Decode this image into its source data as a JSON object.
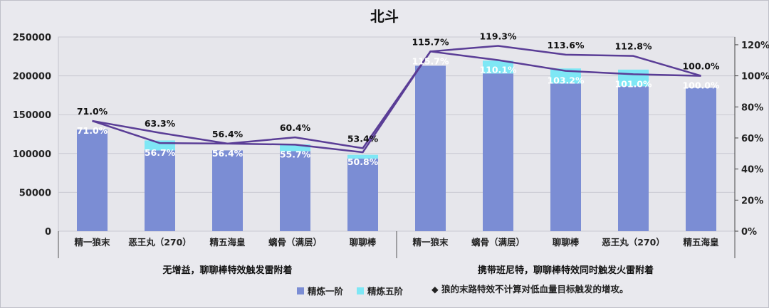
{
  "chart_data": {
    "type": "bar",
    "title": "北斗",
    "categories": [
      "精一狼末",
      "恶王丸（270）",
      "精五海皇",
      "螭骨（满层）",
      "聊聊棒",
      "精一狼末",
      "螭骨（满层）",
      "聊聊棒",
      "恶王丸（270）",
      "精五海皇"
    ],
    "groups": [
      {
        "label": "无增益，聊聊棒特效触发雷附着",
        "start": 0,
        "end": 4
      },
      {
        "label": "携带班尼特，聊聊棒特效同时触发火雷附着",
        "start": 5,
        "end": 9
      }
    ],
    "stacked": true,
    "series": [
      {
        "name": "精炼一阶",
        "color": "#7b8dd4",
        "values": [
          130700,
          104000,
          104000,
          103000,
          93500,
          213000,
          203000,
          190000,
          186500,
          184500
        ]
      },
      {
        "name": "精炼五阶",
        "color": "#7ee7f5",
        "values": [
          0,
          12800,
          0,
          8700,
          4800,
          0,
          16500,
          19500,
          21500,
          0
        ]
      }
    ],
    "line_series": [
      {
        "color": "#5a3d96",
        "values": [
          71.0,
          63.3,
          56.4,
          60.4,
          53.4,
          115.7,
          119.3,
          113.6,
          112.8,
          100.0
        ],
        "labels": [
          "71.0%",
          "63.3%",
          "56.4%",
          "60.4%",
          "53.4%",
          "115.7%",
          "119.3%",
          "113.6%",
          "112.8%",
          "100.0%"
        ]
      },
      {
        "color": "#5a3d96",
        "values": [
          71.0,
          56.7,
          56.4,
          55.7,
          50.8,
          115.7,
          110.1,
          103.2,
          101.0,
          100.0
        ],
        "labels": [
          "71.0%",
          "56.7%",
          "56.4%",
          "55.7%",
          "50.8%",
          "115.7%",
          "110.1%",
          "103.2%",
          "101.0%",
          "100.0%"
        ]
      }
    ],
    "ylim": [
      0,
      250000
    ],
    "yticks": [
      "0",
      "50000",
      "100000",
      "150000",
      "200000",
      "250000"
    ],
    "y2lim": [
      0,
      125
    ],
    "y2ticks": [
      "0%",
      "20%",
      "40%",
      "60%",
      "80%",
      "100%",
      "120%"
    ],
    "grid": true,
    "legend_position": "bottom-center",
    "note": "◆ 狼的末路特效不计算对低血量目标触发的增攻。"
  }
}
